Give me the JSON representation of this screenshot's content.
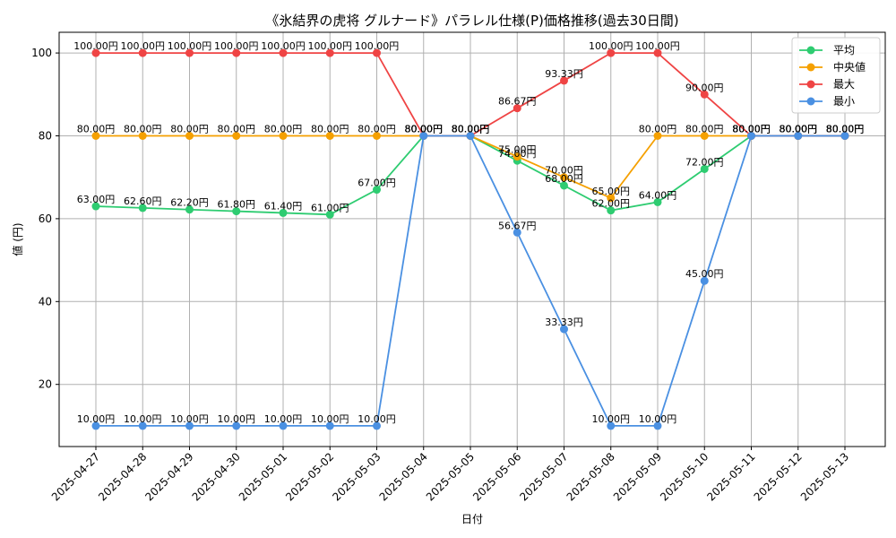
{
  "chart_data": {
    "type": "line",
    "title": "《氷結界の虎将 グルナード》パラレル仕様(P)価格推移(過去30日間)",
    "xlabel": "日付",
    "ylabel": "値 (円)",
    "categories": [
      "2025-04-27",
      "2025-04-28",
      "2025-04-29",
      "2025-04-30",
      "2025-05-01",
      "2025-05-02",
      "2025-05-03",
      "2025-05-04",
      "2025-05-05",
      "2025-05-06",
      "2025-05-07",
      "2025-05-08",
      "2025-05-09",
      "2025-05-10",
      "2025-05-11",
      "2025-05-12",
      "2025-05-13"
    ],
    "ylim": [
      5,
      105
    ],
    "yticks": [
      20,
      40,
      60,
      80,
      100
    ],
    "grid": true,
    "legend_position": "top-right",
    "series": [
      {
        "name": "平均",
        "color": "#2ecc71",
        "values": [
          63.0,
          62.6,
          62.2,
          61.8,
          61.4,
          61.0,
          67.0,
          80.0,
          80.0,
          74.0,
          68.0,
          62.0,
          64.0,
          72.0,
          80.0,
          80.0,
          80.0
        ],
        "labels": [
          "63.00円",
          "62.60円",
          "62.20円",
          "61.80円",
          "61.40円",
          "61.00円",
          "67.00円",
          "80.00円",
          "80.00円",
          "74.00円",
          "68.00円",
          "62.00円",
          "64.00円",
          "72.00円",
          "80.00円",
          "80.00円",
          "80.00円"
        ]
      },
      {
        "name": "中央値",
        "color": "#f5a000",
        "values": [
          80.0,
          80.0,
          80.0,
          80.0,
          80.0,
          80.0,
          80.0,
          80.0,
          80.0,
          75.0,
          70.0,
          65.0,
          80.0,
          80.0,
          80.0,
          80.0,
          80.0
        ],
        "labels": [
          "80.00円",
          "80.00円",
          "80.00円",
          "80.00円",
          "80.00円",
          "80.00円",
          "80.00円",
          "80.00円",
          "80.00円",
          "75.00円",
          "70.00円",
          "65.00円",
          "80.00円",
          "80.00円",
          "80.00円",
          "80.00円",
          "80.00円"
        ]
      },
      {
        "name": "最大",
        "color": "#ef4444",
        "values": [
          100.0,
          100.0,
          100.0,
          100.0,
          100.0,
          100.0,
          100.0,
          80.0,
          80.0,
          86.67,
          93.33,
          100.0,
          100.0,
          90.0,
          80.0,
          80.0,
          80.0
        ],
        "labels": [
          "100.00円",
          "100.00円",
          "100.00円",
          "100.00円",
          "100.00円",
          "100.00円",
          "100.00円",
          "80.00円",
          "80.00円",
          "86.67円",
          "93.33円",
          "100.00円",
          "100.00円",
          "90.00円",
          "80.00円",
          "80.00円",
          "80.00円"
        ]
      },
      {
        "name": "最小",
        "color": "#4a90e2",
        "values": [
          10.0,
          10.0,
          10.0,
          10.0,
          10.0,
          10.0,
          10.0,
          80.0,
          80.0,
          56.67,
          33.33,
          10.0,
          10.0,
          45.0,
          80.0,
          80.0,
          80.0
        ],
        "labels": [
          "10.00円",
          "10.00円",
          "10.00円",
          "10.00円",
          "10.00円",
          "10.00円",
          "10.00円",
          "80.00円",
          "80.00円",
          "56.67円",
          "33.33円",
          "10.00円",
          "10.00円",
          "45.00円",
          "80.00円",
          "80.00円",
          "80.00円"
        ]
      }
    ]
  }
}
